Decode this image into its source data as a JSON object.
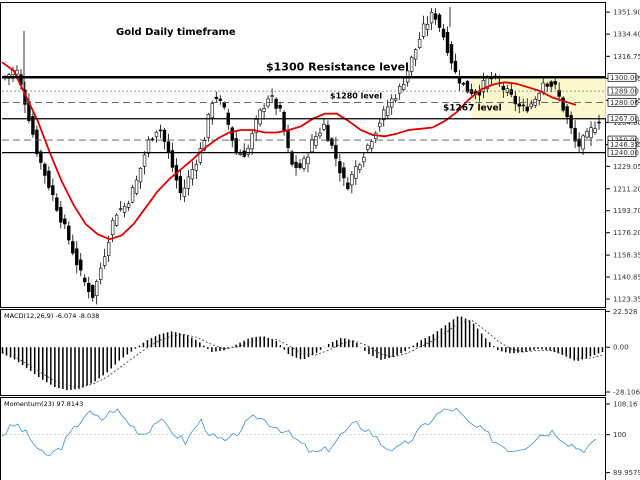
{
  "chart_data": [
    {
      "type": "candlestick",
      "title": "Gold Daily timeframe",
      "price_axis_ticks": [
        "1351.90",
        "1334.40",
        "1316.75",
        "1299.15",
        "1281.65",
        "1264.00",
        "1246.35",
        "1229.05",
        "1211.20",
        "1193.70",
        "1176.20",
        "1158.35",
        "1140.85",
        "1123.35"
      ],
      "ylim": [
        1117,
        1360
      ],
      "levels": [
        {
          "label": "$1300 Resistance level",
          "value": 1300,
          "tag": "1300.00",
          "style": "solid-thick"
        },
        {
          "label": "",
          "value": 1289,
          "tag": "1289.00",
          "style": "dotted"
        },
        {
          "label": "$1280 level",
          "value": 1280,
          "tag": "1280.00",
          "style": "dashed"
        },
        {
          "label": "$1267 level",
          "value": 1267,
          "tag": "1267.00",
          "style": "solid"
        },
        {
          "label": "",
          "value": 1250,
          "tag": "1250.00",
          "style": "dashed"
        },
        {
          "label": "",
          "value": 1240,
          "tag": "1240.00",
          "style": "solid"
        }
      ],
      "current_price_tag": "1246.35",
      "moving_average": {
        "color": "#e00000",
        "values": [
          1312,
          1305,
          1285,
          1265,
          1240,
          1217,
          1198,
          1183,
          1175,
          1171,
          1174,
          1183,
          1196,
          1209,
          1219,
          1227,
          1235,
          1244,
          1251,
          1256,
          1258,
          1258,
          1256,
          1256,
          1258,
          1261,
          1267,
          1271,
          1271,
          1265,
          1258,
          1254,
          1253,
          1255,
          1258,
          1259,
          1260,
          1265,
          1272,
          1282,
          1290,
          1294,
          1296,
          1295,
          1292,
          1289,
          1284,
          1281,
          1278
        ]
      },
      "price_path": [
        1300,
        1307,
        1275,
        1238,
        1214,
        1190,
        1166,
        1140,
        1126,
        1158,
        1192,
        1198,
        1218,
        1248,
        1262,
        1235,
        1206,
        1226,
        1247,
        1288,
        1272,
        1240,
        1240,
        1268,
        1286,
        1272,
        1230,
        1228,
        1250,
        1262,
        1238,
        1212,
        1230,
        1246,
        1264,
        1280,
        1292,
        1315,
        1338,
        1352,
        1330,
        1302,
        1290,
        1288,
        1300,
        1294,
        1284,
        1274,
        1280,
        1298,
        1292,
        1270,
        1244,
        1254,
        1267
      ]
    },
    {
      "type": "histogram",
      "title": "MACD(12,26,9) -6.074 -8.038",
      "axis_ticks": [
        "22.528",
        "0.00",
        "-28.106"
      ],
      "ylim": [
        -30,
        24
      ],
      "bars": [
        -4,
        -8,
        -14,
        -20,
        -25,
        -27,
        -26,
        -22,
        -16,
        -8,
        -2,
        4,
        8,
        10,
        8,
        4,
        -3,
        -2,
        2,
        6,
        7,
        4,
        -5,
        -8,
        -4,
        2,
        6,
        4,
        -4,
        -8,
        -6,
        -2,
        4,
        8,
        14,
        20,
        16,
        6,
        -2,
        -4,
        -3,
        -1,
        -2,
        -5,
        -9,
        -6,
        -3
      ],
      "signal_line": [
        -3,
        -6,
        -11,
        -16,
        -21,
        -24,
        -25,
        -23,
        -19,
        -13,
        -7,
        -1,
        4,
        7,
        8,
        6,
        2,
        -1,
        0,
        3,
        5,
        5,
        1,
        -4,
        -5,
        -2,
        2,
        4,
        1,
        -4,
        -6,
        -4,
        0,
        4,
        9,
        15,
        17,
        11,
        4,
        -1,
        -3,
        -2,
        -2,
        -4,
        -7,
        -7,
        -5
      ]
    },
    {
      "type": "line",
      "title": "Momentum(23) 97.8143",
      "axis_ticks": [
        "108.16",
        "100",
        "89.9579"
      ],
      "ylim": [
        88,
        110
      ],
      "values": [
        100,
        103,
        99,
        94,
        96,
        101,
        106,
        104,
        107,
        103,
        100,
        104,
        101,
        98,
        104,
        99,
        98,
        102,
        105,
        103,
        101,
        98,
        95,
        96,
        100,
        103,
        101,
        97,
        96,
        99,
        103,
        106,
        107,
        103,
        101,
        98,
        96,
        97,
        100,
        101,
        98,
        96,
        98
      ]
    }
  ]
}
